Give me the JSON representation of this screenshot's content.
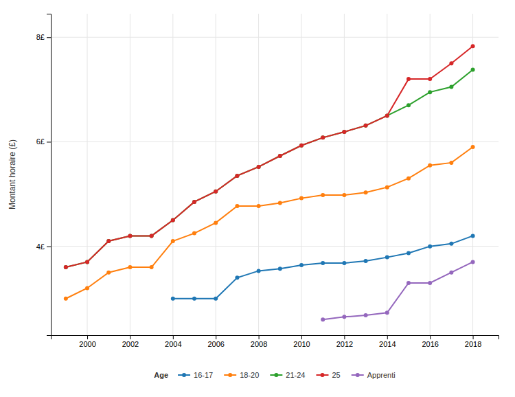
{
  "chart_data": {
    "type": "line",
    "ylabel": "Montant horaire (£)",
    "legend_title": "Age",
    "legend": "bottom",
    "grid": true,
    "marker": "circle",
    "series": [
      {
        "name": "16-17",
        "x": [
          2004,
          2005,
          2006,
          2007,
          2008,
          2009,
          2010,
          2011,
          2012,
          2013,
          2014,
          2015,
          2016,
          2017,
          2018
        ],
        "values": [
          3.0,
          3.0,
          3.0,
          3.4,
          3.53,
          3.57,
          3.64,
          3.68,
          3.68,
          3.72,
          3.79,
          3.87,
          4.0,
          4.05,
          4.2
        ]
      },
      {
        "name": "18-20",
        "x": [
          1999,
          2000,
          2001,
          2002,
          2003,
          2004,
          2005,
          2006,
          2007,
          2008,
          2009,
          2010,
          2011,
          2012,
          2013,
          2014,
          2015,
          2016,
          2017,
          2018
        ],
        "values": [
          3.0,
          3.2,
          3.5,
          3.6,
          3.6,
          4.1,
          4.25,
          4.45,
          4.77,
          4.77,
          4.83,
          4.92,
          4.98,
          4.98,
          5.03,
          5.13,
          5.3,
          5.55,
          5.6,
          5.9
        ]
      },
      {
        "name": "21-24",
        "x": [
          1999,
          2000,
          2001,
          2002,
          2003,
          2004,
          2005,
          2006,
          2007,
          2008,
          2009,
          2010,
          2011,
          2012,
          2013,
          2014,
          2015,
          2016,
          2017,
          2018
        ],
        "values": [
          3.6,
          3.7,
          4.1,
          4.2,
          4.2,
          4.5,
          4.85,
          5.05,
          5.35,
          5.52,
          5.73,
          5.93,
          6.08,
          6.19,
          6.31,
          6.5,
          6.7,
          6.95,
          7.05,
          7.38
        ]
      },
      {
        "name": "25",
        "x": [
          1999,
          2000,
          2001,
          2002,
          2003,
          2004,
          2005,
          2006,
          2007,
          2008,
          2009,
          2010,
          2011,
          2012,
          2013,
          2014,
          2015,
          2016,
          2017,
          2018
        ],
        "values": [
          3.6,
          3.7,
          4.1,
          4.2,
          4.2,
          4.5,
          4.85,
          5.05,
          5.35,
          5.52,
          5.73,
          5.93,
          6.08,
          6.19,
          6.31,
          6.5,
          7.2,
          7.2,
          7.5,
          7.83
        ]
      },
      {
        "name": "Apprenti",
        "x": [
          2011,
          2012,
          2013,
          2014,
          2015,
          2016,
          2017,
          2018
        ],
        "values": [
          2.6,
          2.65,
          2.68,
          2.73,
          3.3,
          3.3,
          3.5,
          3.7
        ]
      }
    ],
    "xlim": [
      1998.3,
      2019.2
    ],
    "ylim": [
      2.3,
      8.45
    ],
    "xticks": [
      2000,
      2002,
      2004,
      2006,
      2008,
      2010,
      2012,
      2014,
      2016,
      2018
    ],
    "yticks": [
      {
        "value": 4,
        "label": "4£"
      },
      {
        "value": 6,
        "label": "6£"
      },
      {
        "value": 8,
        "label": "8£"
      }
    ]
  }
}
